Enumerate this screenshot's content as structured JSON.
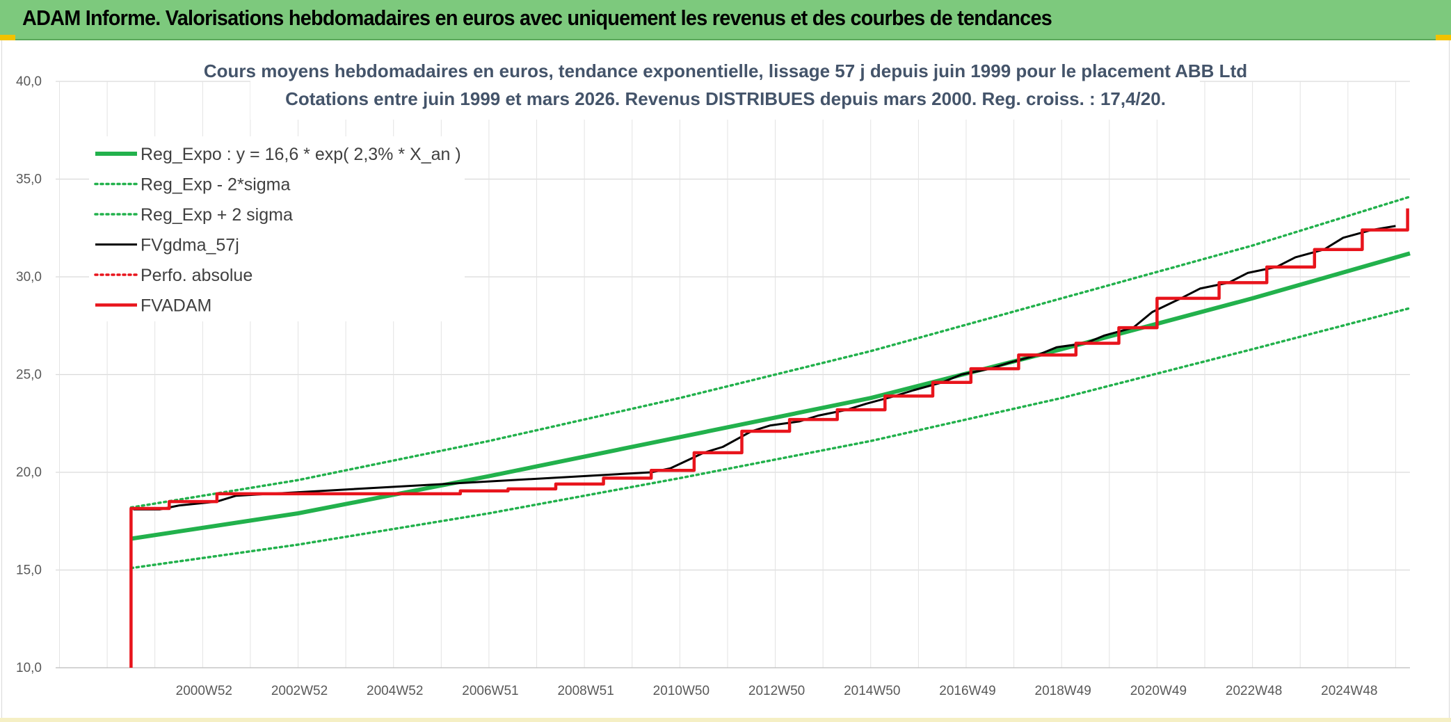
{
  "header": {
    "title": "ADAM Informe. Valorisations hebdomadaires en euros avec uniquement les revenus et des courbes de tendances"
  },
  "colors": {
    "banner": "#7dc97d",
    "reg_green": "#22b14c",
    "fvgdma": "#000000",
    "fvadam": "#e8141c",
    "perfo": "#e8141c"
  },
  "chart_data": {
    "type": "line",
    "title": "Cours moyens hebdomadaires en euros, tendance exponentielle, lissage 57 j depuis juin 1999 pour le placement ABB Ltd",
    "subtitle": "Cotations entre juin 1999 et mars 2026. Revenus DISTRIBUES depuis mars 2000. Reg. croiss. : 17,4/20.",
    "xlabel": "",
    "ylabel": "",
    "x_range": [
      1997.92,
      2026.3
    ],
    "ylim": [
      10,
      40
    ],
    "y_ticks": [
      "10,0",
      "15,0",
      "20,0",
      "25,0",
      "30,0",
      "35,0",
      "40,0"
    ],
    "x_ticks": [
      {
        "label": "2000W52",
        "x": 2001.0
      },
      {
        "label": "2002W52",
        "x": 2003.0
      },
      {
        "label": "2004W52",
        "x": 2005.0
      },
      {
        "label": "2006W51",
        "x": 2007.0
      },
      {
        "label": "2008W51",
        "x": 2009.0
      },
      {
        "label": "2010W50",
        "x": 2011.0
      },
      {
        "label": "2012W50",
        "x": 2013.0
      },
      {
        "label": "2014W50",
        "x": 2015.0
      },
      {
        "label": "2016W49",
        "x": 2017.0
      },
      {
        "label": "2018W49",
        "x": 2019.0
      },
      {
        "label": "2020W49",
        "x": 2021.0
      },
      {
        "label": "2022W48",
        "x": 2023.0
      },
      {
        "label": "2024W48",
        "x": 2025.0
      }
    ],
    "grid": true,
    "legend_position": "top-left",
    "series": [
      {
        "name": "Reg_Expo : y = 16,6 * exp( 2,3% *  X_an )",
        "style": "solid-thick",
        "color": "#22b14c",
        "points": [
          [
            1999.5,
            16.6
          ],
          [
            2003.0,
            17.9
          ],
          [
            2007.0,
            19.8
          ],
          [
            2011.0,
            21.8
          ],
          [
            2015.0,
            23.8
          ],
          [
            2019.0,
            26.3
          ],
          [
            2023.0,
            28.9
          ],
          [
            2026.3,
            31.2
          ]
        ]
      },
      {
        "name": "Reg_Exp - 2*sigma",
        "style": "dotted",
        "color": "#22b14c",
        "points": [
          [
            1999.5,
            15.1
          ],
          [
            2003.0,
            16.3
          ],
          [
            2007.0,
            17.9
          ],
          [
            2011.0,
            19.7
          ],
          [
            2015.0,
            21.6
          ],
          [
            2019.0,
            23.8
          ],
          [
            2023.0,
            26.3
          ],
          [
            2026.3,
            28.4
          ]
        ]
      },
      {
        "name": "Reg_Exp + 2 sigma",
        "style": "dotted",
        "color": "#22b14c",
        "points": [
          [
            1999.5,
            18.2
          ],
          [
            2003.0,
            19.6
          ],
          [
            2007.0,
            21.6
          ],
          [
            2011.0,
            23.8
          ],
          [
            2015.0,
            26.2
          ],
          [
            2019.0,
            28.9
          ],
          [
            2023.0,
            31.6
          ],
          [
            2026.3,
            34.1
          ]
        ]
      },
      {
        "name": "FVgdma_57j",
        "style": "solid",
        "color": "#000000",
        "points": [
          [
            1999.55,
            18.1
          ],
          [
            2000.1,
            18.1
          ],
          [
            2000.5,
            18.3
          ],
          [
            2001.3,
            18.5
          ],
          [
            2001.7,
            18.8
          ],
          [
            2010.4,
            20.0
          ],
          [
            2010.8,
            20.2
          ],
          [
            2011.5,
            21.0
          ],
          [
            2011.9,
            21.3
          ],
          [
            2012.5,
            22.1
          ],
          [
            2012.9,
            22.4
          ],
          [
            2013.5,
            22.6
          ],
          [
            2013.9,
            22.9
          ],
          [
            2014.5,
            23.2
          ],
          [
            2014.9,
            23.5
          ],
          [
            2015.5,
            23.9
          ],
          [
            2015.9,
            24.2
          ],
          [
            2016.5,
            24.6
          ],
          [
            2016.9,
            25.0
          ],
          [
            2017.5,
            25.3
          ],
          [
            2017.9,
            25.6
          ],
          [
            2018.5,
            26.0
          ],
          [
            2018.9,
            26.4
          ],
          [
            2019.5,
            26.6
          ],
          [
            2019.9,
            27.0
          ],
          [
            2020.5,
            27.4
          ],
          [
            2020.9,
            28.2
          ],
          [
            2021.5,
            28.9
          ],
          [
            2021.9,
            29.4
          ],
          [
            2022.5,
            29.7
          ],
          [
            2022.9,
            30.2
          ],
          [
            2023.5,
            30.5
          ],
          [
            2023.9,
            31.0
          ],
          [
            2024.5,
            31.4
          ],
          [
            2024.9,
            32.0
          ],
          [
            2025.5,
            32.4
          ],
          [
            2026.0,
            32.6
          ]
        ]
      },
      {
        "name": "Perfo. absolue",
        "style": "dotted",
        "color": "#e8141c",
        "points": []
      },
      {
        "name": "FVADAM",
        "style": "solid-thick",
        "color": "#e8141c",
        "points": [
          [
            1999.5,
            10.0
          ],
          [
            1999.5,
            18.15
          ],
          [
            2000.3,
            18.15
          ],
          [
            2000.3,
            18.5
          ],
          [
            2001.3,
            18.5
          ],
          [
            2001.3,
            18.9
          ],
          [
            2006.4,
            18.9
          ],
          [
            2006.4,
            19.05
          ],
          [
            2007.4,
            19.05
          ],
          [
            2007.4,
            19.15
          ],
          [
            2008.4,
            19.15
          ],
          [
            2008.4,
            19.4
          ],
          [
            2009.4,
            19.4
          ],
          [
            2009.4,
            19.7
          ],
          [
            2010.4,
            19.7
          ],
          [
            2010.4,
            20.1
          ],
          [
            2011.3,
            20.1
          ],
          [
            2011.3,
            21.0
          ],
          [
            2012.3,
            21.0
          ],
          [
            2012.3,
            22.1
          ],
          [
            2013.3,
            22.1
          ],
          [
            2013.3,
            22.7
          ],
          [
            2014.3,
            22.7
          ],
          [
            2014.3,
            23.2
          ],
          [
            2015.3,
            23.2
          ],
          [
            2015.3,
            23.9
          ],
          [
            2016.3,
            23.9
          ],
          [
            2016.3,
            24.6
          ],
          [
            2017.1,
            24.6
          ],
          [
            2017.1,
            25.3
          ],
          [
            2018.1,
            25.3
          ],
          [
            2018.1,
            26.0
          ],
          [
            2019.3,
            26.0
          ],
          [
            2019.3,
            26.6
          ],
          [
            2020.2,
            26.6
          ],
          [
            2020.2,
            27.4
          ],
          [
            2021.0,
            27.4
          ],
          [
            2021.0,
            28.9
          ],
          [
            2022.3,
            28.9
          ],
          [
            2022.3,
            29.7
          ],
          [
            2023.3,
            29.7
          ],
          [
            2023.3,
            30.5
          ],
          [
            2024.3,
            30.5
          ],
          [
            2024.3,
            31.4
          ],
          [
            2025.3,
            31.4
          ],
          [
            2025.3,
            32.4
          ],
          [
            2026.25,
            32.4
          ],
          [
            2026.25,
            33.5
          ]
        ]
      }
    ]
  }
}
